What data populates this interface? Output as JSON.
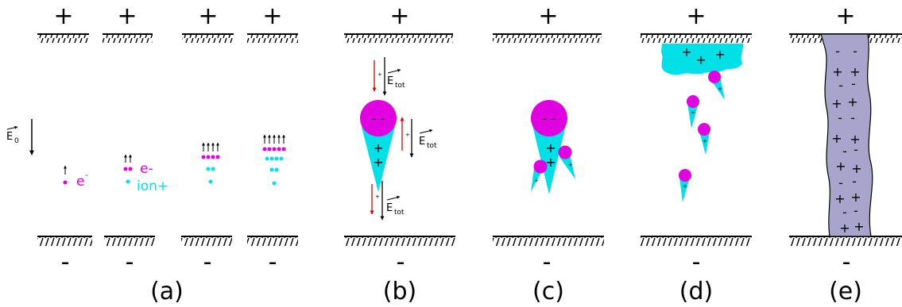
{
  "panels": [
    {
      "id": "a",
      "caption": "(a)"
    },
    {
      "id": "b",
      "caption": "(b)"
    },
    {
      "id": "c",
      "caption": "(c)"
    },
    {
      "id": "d",
      "caption": "(d)"
    },
    {
      "id": "e",
      "caption": "(e)"
    }
  ],
  "electrode_signs": {
    "top": "+",
    "bottom": "-"
  },
  "field_labels": {
    "e0_main": "E",
    "e0_sub": "0",
    "tot_main": "E",
    "tot_sub": "tot"
  },
  "legend": {
    "electron": "e-",
    "electron_main": "e",
    "electron_sup": "-",
    "ion": "ion+"
  },
  "charges": {
    "plus": "+",
    "minus": "-",
    "double_minus": "- -"
  },
  "colors": {
    "electron": "#e000e0",
    "ion": "#00e0e6",
    "channel": "#a8a4cc",
    "field_arrow_red": "#e00000"
  }
}
